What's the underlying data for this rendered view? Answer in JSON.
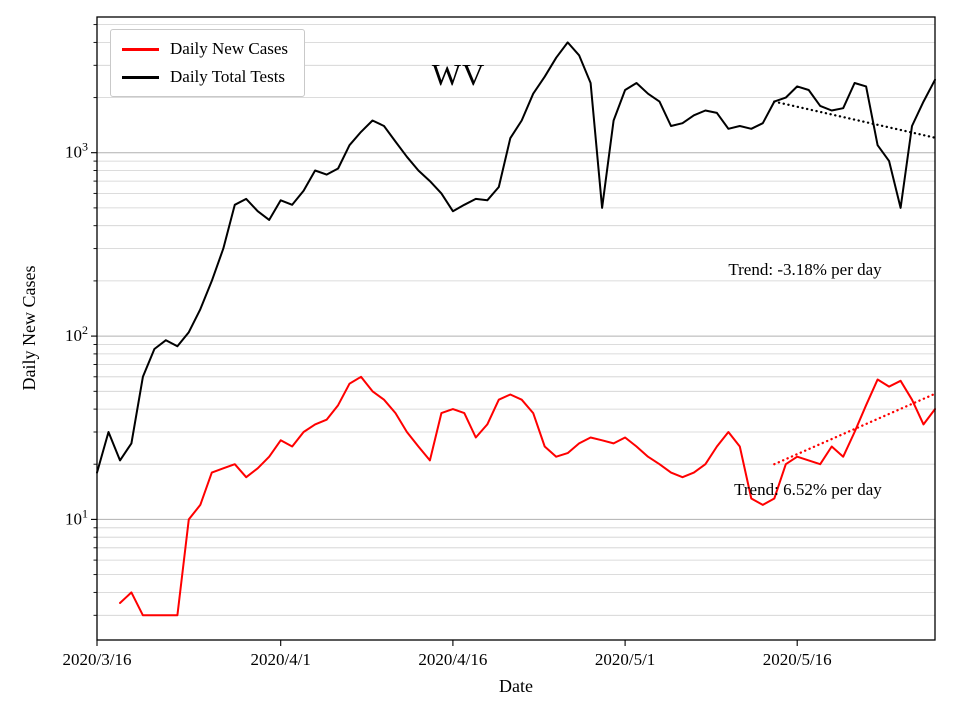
{
  "chart_data": {
    "type": "line",
    "state_label": "WV",
    "x_axis": {
      "label": "Date",
      "max_day": 73,
      "ticks": [
        {
          "day": 0,
          "label": "2020/3/16"
        },
        {
          "day": 16,
          "label": "2020/4/1"
        },
        {
          "day": 31,
          "label": "2020/4/16"
        },
        {
          "day": 46,
          "label": "2020/5/1"
        },
        {
          "day": 61,
          "label": "2020/5/16"
        }
      ]
    },
    "y_axis": {
      "label": "Daily New Cases",
      "scale": "log",
      "lim": [
        2.2,
        5500
      ],
      "major_ticks": [
        {
          "value": 10,
          "base": "10",
          "exponent": "1"
        },
        {
          "value": 100,
          "base": "10",
          "exponent": "2"
        },
        {
          "value": 1000,
          "base": "10",
          "exponent": "3"
        }
      ]
    },
    "grid": {
      "horizontal": true,
      "vertical": false,
      "major_color": "#b0b0b0",
      "minor_color": "#d0d0d0"
    },
    "series": [
      {
        "name": "Daily New Cases",
        "color": "#ff0000",
        "line_width": 2,
        "values": [
          null,
          null,
          3.5,
          4,
          3,
          3,
          3,
          3,
          10,
          12,
          18,
          19,
          20,
          17,
          19,
          22,
          27,
          25,
          30,
          33,
          35,
          42,
          55,
          60,
          50,
          45,
          38,
          30,
          25,
          21,
          38,
          40,
          38,
          28,
          33,
          45,
          48,
          45,
          38,
          25,
          22,
          23,
          26,
          28,
          27,
          26,
          28,
          25,
          22,
          20,
          18,
          17,
          18,
          20,
          25,
          30,
          25,
          13,
          12,
          13,
          20,
          22,
          21,
          20,
          25,
          22,
          30,
          42,
          58,
          53,
          57,
          45,
          33,
          40
        ]
      },
      {
        "name": "Daily Total Tests",
        "color": "#000000",
        "line_width": 2,
        "values": [
          18,
          30,
          21,
          26,
          60,
          85,
          95,
          88,
          105,
          140,
          200,
          300,
          520,
          560,
          480,
          430,
          550,
          520,
          620,
          800,
          760,
          820,
          1100,
          1300,
          1500,
          1400,
          1150,
          950,
          800,
          700,
          600,
          480,
          520,
          560,
          550,
          650,
          1200,
          1500,
          2100,
          2600,
          3300,
          4000,
          3400,
          2400,
          500,
          1500,
          2200,
          2400,
          2100,
          1900,
          1400,
          1450,
          1600,
          1700,
          1650,
          1350,
          1400,
          1350,
          1450,
          1900,
          2000,
          2300,
          2200,
          1800,
          1700,
          1750,
          2400,
          2300,
          1100,
          900,
          500,
          1400,
          1900,
          2500
        ]
      }
    ],
    "trend_lines": [
      {
        "for_series": "Daily Total Tests",
        "color": "#000000",
        "style": "dotted",
        "start_day": 59,
        "end_day": 73,
        "start_value": 1900,
        "rate_percent_per_day": -3.18
      },
      {
        "for_series": "Daily New Cases",
        "color": "#ff0000",
        "style": "dotted",
        "start_day": 59,
        "end_day": 73,
        "start_value": 20,
        "rate_percent_per_day": 6.52
      }
    ],
    "annotations": [
      {
        "id": "state",
        "text": "WV",
        "x_day": 31.5,
        "y_value": 2600,
        "align": "center"
      },
      {
        "id": "trend-tests",
        "text": "Trend: -3.18% per day",
        "x_day": 55,
        "y_value": 230,
        "align": "left"
      },
      {
        "id": "trend-cases",
        "text": "Trend: 6.52% per day",
        "x_day": 55.5,
        "y_value": 14.5,
        "align": "left"
      }
    ],
    "legend": {
      "position": "upper-left",
      "entries": [
        {
          "label": "Daily New Cases",
          "color": "#ff0000"
        },
        {
          "label": "Daily Total Tests",
          "color": "#000000"
        }
      ]
    }
  }
}
